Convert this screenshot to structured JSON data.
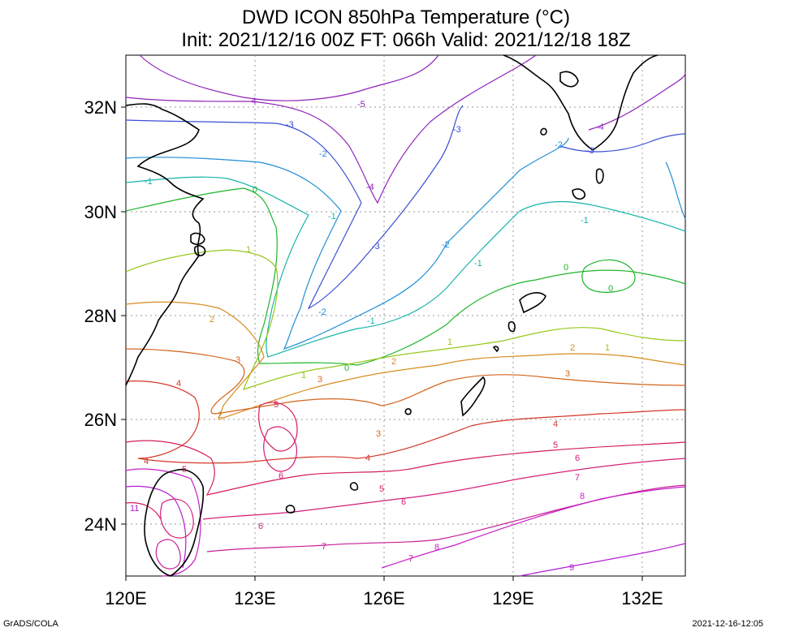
{
  "title": {
    "line1": "DWD ICON 850hPa Temperature (°C)",
    "line2": "Init: 2021/12/16 00Z  FT: 066h  Valid: 2021/12/18 18Z"
  },
  "axes": {
    "x_ticks": [
      "120E",
      "123E",
      "126E",
      "129E",
      "132E"
    ],
    "y_ticks": [
      "32N",
      "30N",
      "28N",
      "26N",
      "24N"
    ],
    "lon_range": [
      120,
      133
    ],
    "lat_range": [
      23,
      33
    ]
  },
  "contour_labels": [
    {
      "text": "-5",
      "color": "#8f23b8"
    },
    {
      "text": "-4",
      "color": "#8f23b8"
    },
    {
      "text": "-3",
      "color": "#3a4fd4"
    },
    {
      "text": "-2",
      "color": "#1f8fd6"
    },
    {
      "text": "-1",
      "color": "#14b4a8"
    },
    {
      "text": "0",
      "color": "#1fb52a"
    },
    {
      "text": "1",
      "color": "#96c81e"
    },
    {
      "text": "2",
      "color": "#d68c1e"
    },
    {
      "text": "3",
      "color": "#d4641e"
    },
    {
      "text": "4",
      "color": "#d4372a"
    },
    {
      "text": "5",
      "color": "#d41e5a"
    },
    {
      "text": "6",
      "color": "#d41e78"
    },
    {
      "text": "7",
      "color": "#c81e96"
    },
    {
      "text": "8",
      "color": "#c81ec8"
    },
    {
      "text": "9",
      "color": "#b41ed2"
    },
    {
      "text": "11",
      "color": "#b41ed2"
    }
  ],
  "footer": {
    "left": "GrADS/COLA",
    "right": "2021-12-16-12:05"
  }
}
